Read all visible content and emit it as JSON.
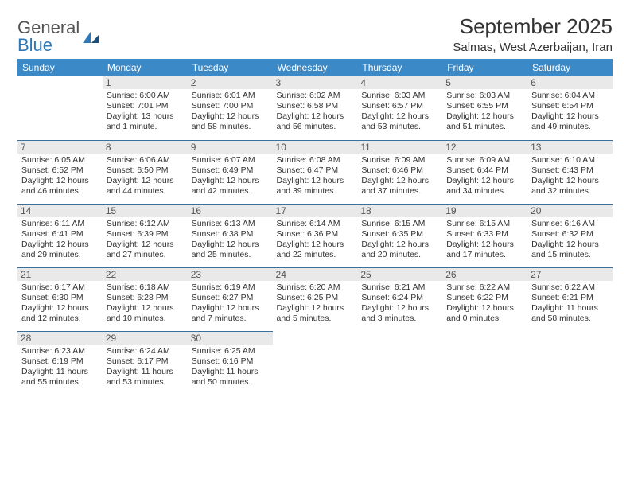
{
  "logo": {
    "word1": "General",
    "word2": "Blue"
  },
  "title": "September 2025",
  "subtitle": "Salmas, West Azerbaijan, Iran",
  "colors": {
    "header_bg": "#3b89c7",
    "header_fg": "#ffffff",
    "daynum_bg": "#e9e9e9",
    "rule": "#3b6f9a",
    "logo_accent": "#2f78b7"
  },
  "weekdays": [
    "Sunday",
    "Monday",
    "Tuesday",
    "Wednesday",
    "Thursday",
    "Friday",
    "Saturday"
  ],
  "weeks": [
    [
      null,
      {
        "n": "1",
        "sr": "6:00 AM",
        "ss": "7:01 PM",
        "dl": "13 hours and 1 minute."
      },
      {
        "n": "2",
        "sr": "6:01 AM",
        "ss": "7:00 PM",
        "dl": "12 hours and 58 minutes."
      },
      {
        "n": "3",
        "sr": "6:02 AM",
        "ss": "6:58 PM",
        "dl": "12 hours and 56 minutes."
      },
      {
        "n": "4",
        "sr": "6:03 AM",
        "ss": "6:57 PM",
        "dl": "12 hours and 53 minutes."
      },
      {
        "n": "5",
        "sr": "6:03 AM",
        "ss": "6:55 PM",
        "dl": "12 hours and 51 minutes."
      },
      {
        "n": "6",
        "sr": "6:04 AM",
        "ss": "6:54 PM",
        "dl": "12 hours and 49 minutes."
      }
    ],
    [
      {
        "n": "7",
        "sr": "6:05 AM",
        "ss": "6:52 PM",
        "dl": "12 hours and 46 minutes."
      },
      {
        "n": "8",
        "sr": "6:06 AM",
        "ss": "6:50 PM",
        "dl": "12 hours and 44 minutes."
      },
      {
        "n": "9",
        "sr": "6:07 AM",
        "ss": "6:49 PM",
        "dl": "12 hours and 42 minutes."
      },
      {
        "n": "10",
        "sr": "6:08 AM",
        "ss": "6:47 PM",
        "dl": "12 hours and 39 minutes."
      },
      {
        "n": "11",
        "sr": "6:09 AM",
        "ss": "6:46 PM",
        "dl": "12 hours and 37 minutes."
      },
      {
        "n": "12",
        "sr": "6:09 AM",
        "ss": "6:44 PM",
        "dl": "12 hours and 34 minutes."
      },
      {
        "n": "13",
        "sr": "6:10 AM",
        "ss": "6:43 PM",
        "dl": "12 hours and 32 minutes."
      }
    ],
    [
      {
        "n": "14",
        "sr": "6:11 AM",
        "ss": "6:41 PM",
        "dl": "12 hours and 29 minutes."
      },
      {
        "n": "15",
        "sr": "6:12 AM",
        "ss": "6:39 PM",
        "dl": "12 hours and 27 minutes."
      },
      {
        "n": "16",
        "sr": "6:13 AM",
        "ss": "6:38 PM",
        "dl": "12 hours and 25 minutes."
      },
      {
        "n": "17",
        "sr": "6:14 AM",
        "ss": "6:36 PM",
        "dl": "12 hours and 22 minutes."
      },
      {
        "n": "18",
        "sr": "6:15 AM",
        "ss": "6:35 PM",
        "dl": "12 hours and 20 minutes."
      },
      {
        "n": "19",
        "sr": "6:15 AM",
        "ss": "6:33 PM",
        "dl": "12 hours and 17 minutes."
      },
      {
        "n": "20",
        "sr": "6:16 AM",
        "ss": "6:32 PM",
        "dl": "12 hours and 15 minutes."
      }
    ],
    [
      {
        "n": "21",
        "sr": "6:17 AM",
        "ss": "6:30 PM",
        "dl": "12 hours and 12 minutes."
      },
      {
        "n": "22",
        "sr": "6:18 AM",
        "ss": "6:28 PM",
        "dl": "12 hours and 10 minutes."
      },
      {
        "n": "23",
        "sr": "6:19 AM",
        "ss": "6:27 PM",
        "dl": "12 hours and 7 minutes."
      },
      {
        "n": "24",
        "sr": "6:20 AM",
        "ss": "6:25 PM",
        "dl": "12 hours and 5 minutes."
      },
      {
        "n": "25",
        "sr": "6:21 AM",
        "ss": "6:24 PM",
        "dl": "12 hours and 3 minutes."
      },
      {
        "n": "26",
        "sr": "6:22 AM",
        "ss": "6:22 PM",
        "dl": "12 hours and 0 minutes."
      },
      {
        "n": "27",
        "sr": "6:22 AM",
        "ss": "6:21 PM",
        "dl": "11 hours and 58 minutes."
      }
    ],
    [
      {
        "n": "28",
        "sr": "6:23 AM",
        "ss": "6:19 PM",
        "dl": "11 hours and 55 minutes."
      },
      {
        "n": "29",
        "sr": "6:24 AM",
        "ss": "6:17 PM",
        "dl": "11 hours and 53 minutes."
      },
      {
        "n": "30",
        "sr": "6:25 AM",
        "ss": "6:16 PM",
        "dl": "11 hours and 50 minutes."
      },
      null,
      null,
      null,
      null
    ]
  ],
  "labels": {
    "sunrise": "Sunrise:",
    "sunset": "Sunset:",
    "daylight": "Daylight:"
  }
}
